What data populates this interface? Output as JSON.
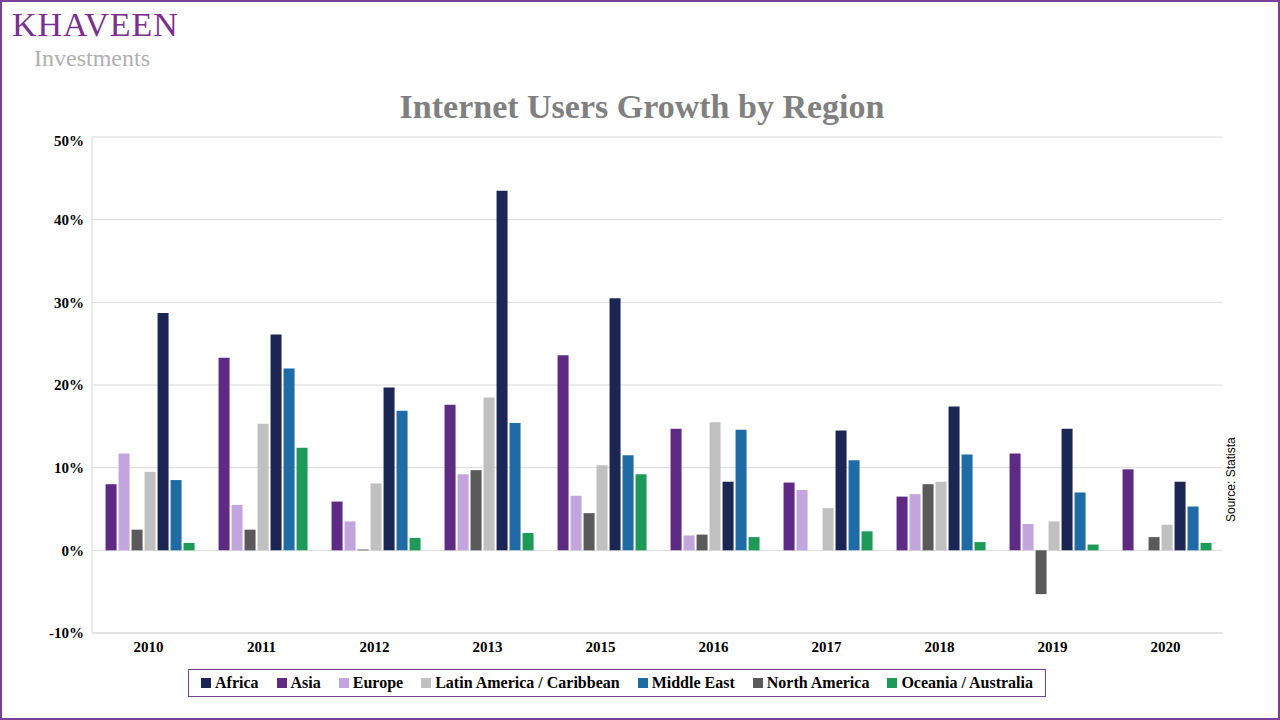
{
  "brand": "KHAVEEN",
  "brand_subtitle": "Investments",
  "source": "Source: Statista",
  "chart_data": {
    "type": "bar",
    "title": "Internet Users Growth by Region",
    "categories": [
      "2010",
      "2011",
      "2012",
      "2013",
      "2015",
      "2016",
      "2017",
      "2018",
      "2019",
      "2020"
    ],
    "series": [
      {
        "name": "Asia",
        "color": "#5e2a84",
        "values": [
          8,
          23.3,
          5.9,
          17.6,
          23.6,
          14.7,
          8.2,
          6.5,
          11.7,
          9.8
        ]
      },
      {
        "name": "Europe",
        "color": "#c2a5dc",
        "values": [
          11.7,
          5.5,
          3.5,
          9.2,
          6.6,
          1.8,
          7.3,
          6.8,
          3.2,
          0
        ]
      },
      {
        "name": "North America",
        "color": "#5a5a5a",
        "values": [
          2.5,
          2.5,
          0.1,
          9.7,
          4.5,
          1.9,
          0,
          8,
          -5.3,
          1.6
        ]
      },
      {
        "name": "Latin America / Caribbean",
        "color": "#c0c0c0",
        "values": [
          9.5,
          15.3,
          8.1,
          18.5,
          10.3,
          15.5,
          5.1,
          8.3,
          3.5,
          3.1
        ]
      },
      {
        "name": "Africa",
        "color": "#1b2655",
        "values": [
          28.7,
          26.1,
          19.7,
          43.5,
          30.5,
          8.3,
          14.5,
          17.4,
          14.7,
          8.3
        ]
      },
      {
        "name": "Middle East",
        "color": "#1f6ba5",
        "values": [
          8.5,
          22,
          16.9,
          15.4,
          11.5,
          14.6,
          10.9,
          11.6,
          7,
          5.3
        ]
      },
      {
        "name": "Oceania / Australia",
        "color": "#1e9a58",
        "values": [
          0.9,
          12.4,
          1.5,
          2.1,
          9.2,
          1.6,
          2.3,
          1,
          0.7,
          0.9
        ]
      }
    ],
    "ylim": [
      -10,
      50
    ],
    "yticks": [
      {
        "value": -10,
        "label": "-10%"
      },
      {
        "value": 0,
        "label": "0%"
      },
      {
        "value": 10,
        "label": "10%"
      },
      {
        "value": 20,
        "label": "20%"
      },
      {
        "value": 30,
        "label": "30%"
      },
      {
        "value": 40,
        "label": "40%"
      },
      {
        "value": 50,
        "label": "50%"
      }
    ],
    "grid": true,
    "legend": "bottom"
  }
}
